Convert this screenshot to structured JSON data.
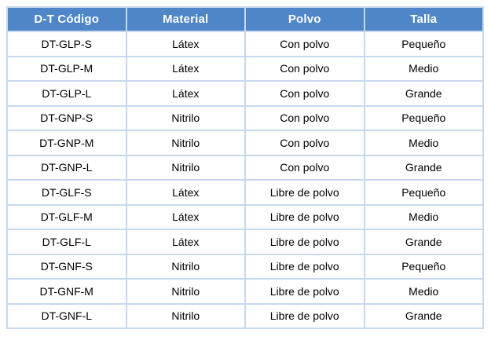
{
  "colors": {
    "header_background": "#4E86C8",
    "header_text": "#FFFFFF",
    "cell_border": "#C6D9F0",
    "cell_background": "#FFFFFF",
    "cell_text": "#000000"
  },
  "chart_data": {
    "type": "table",
    "title": "",
    "columns": [
      "D-T Código",
      "Material",
      "Polvo",
      "Talla"
    ],
    "rows": [
      [
        "DT-GLP-S",
        "Látex",
        "Con polvo",
        "Pequeño"
      ],
      [
        "DT-GLP-M",
        "Látex",
        "Con polvo",
        "Medio"
      ],
      [
        "DT-GLP-L",
        "Látex",
        "Con polvo",
        "Grande"
      ],
      [
        "DT-GNP-S",
        "Nitrilo",
        "Con polvo",
        "Pequeño"
      ],
      [
        "DT-GNP-M",
        "Nitrilo",
        "Con polvo",
        "Medio"
      ],
      [
        "DT-GNP-L",
        "Nitrilo",
        "Con polvo",
        "Grande"
      ],
      [
        "DT-GLF-S",
        "Látex",
        "Libre de polvo",
        "Pequeño"
      ],
      [
        "DT-GLF-M",
        "Látex",
        "Libre de polvo",
        "Medio"
      ],
      [
        "DT-GLF-L",
        "Látex",
        "Libre de polvo",
        "Grande"
      ],
      [
        "DT-GNF-S",
        "Nitrilo",
        "Libre de polvo",
        "Pequeño"
      ],
      [
        "DT-GNF-M",
        "Nitrilo",
        "Libre de polvo",
        "Medio"
      ],
      [
        "DT-GNF-L",
        "Nitrilo",
        "Libre de polvo",
        "Grande"
      ]
    ]
  }
}
